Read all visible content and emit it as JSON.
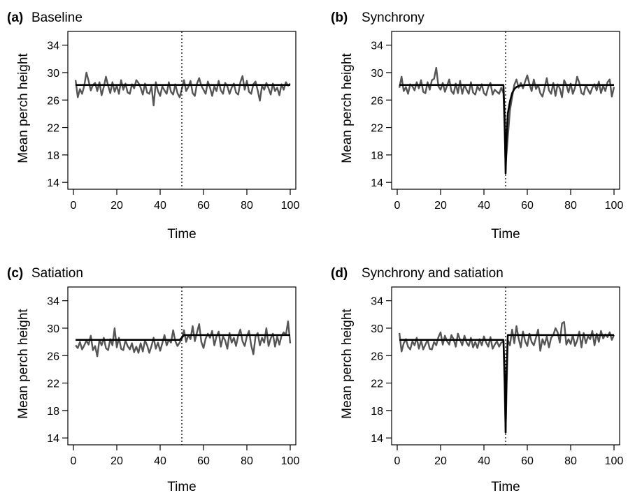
{
  "chart_data": [
    {
      "type": "line",
      "panel_letter": "(a)",
      "title": "Baseline",
      "xlabel": "Time",
      "ylabel": "Mean perch height",
      "xlim": [
        0,
        100
      ],
      "ylim": [
        13,
        36
      ],
      "xticks": [
        0,
        20,
        40,
        60,
        80,
        100
      ],
      "yticks": [
        14,
        18,
        22,
        26,
        30,
        34
      ],
      "vline": 50,
      "series": [
        {
          "role": "observed",
          "color": "#555555",
          "x": [
            1,
            2,
            3,
            4,
            5,
            6,
            7,
            8,
            9,
            10,
            11,
            12,
            13,
            14,
            15,
            16,
            17,
            18,
            19,
            20,
            21,
            22,
            23,
            24,
            25,
            26,
            27,
            28,
            29,
            30,
            31,
            32,
            33,
            34,
            35,
            36,
            37,
            38,
            39,
            40,
            41,
            42,
            43,
            44,
            45,
            46,
            47,
            48,
            49,
            50,
            51,
            52,
            53,
            54,
            55,
            56,
            57,
            58,
            59,
            60,
            61,
            62,
            63,
            64,
            65,
            66,
            67,
            68,
            69,
            70,
            71,
            72,
            73,
            74,
            75,
            76,
            77,
            78,
            79,
            80,
            81,
            82,
            83,
            84,
            85,
            86,
            87,
            88,
            89,
            90,
            91,
            92,
            93,
            94,
            95,
            96,
            97,
            98,
            99,
            100
          ],
          "y": [
            28.9,
            26.4,
            27.6,
            26.9,
            28.1,
            30.0,
            28.8,
            27.4,
            28.2,
            28.5,
            27.3,
            28.6,
            26.7,
            27.9,
            29.4,
            28.1,
            27.0,
            28.6,
            27.2,
            28.1,
            26.9,
            28.9,
            27.5,
            28.4,
            27.1,
            26.9,
            28.3,
            27.7,
            28.9,
            28.5,
            27.8,
            26.8,
            28.4,
            27.1,
            26.9,
            28.0,
            25.2,
            28.6,
            27.3,
            26.6,
            28.0,
            27.4,
            26.9,
            28.6,
            27.2,
            26.8,
            28.3,
            27.0,
            26.4,
            27.6,
            28.9,
            27.3,
            27.9,
            28.8,
            27.0,
            26.6,
            28.4,
            29.2,
            28.1,
            27.5,
            26.9,
            28.7,
            27.8,
            26.6,
            28.0,
            27.3,
            28.8,
            27.4,
            26.9,
            28.5,
            28.0,
            26.9,
            27.8,
            28.4,
            27.1,
            26.8,
            28.6,
            29.5,
            27.5,
            28.8,
            27.2,
            26.9,
            28.3,
            28.7,
            27.4,
            25.9,
            28.1,
            27.5,
            28.5,
            27.7,
            26.8,
            28.4,
            27.3,
            27.8,
            26.7,
            28.3,
            27.5,
            28.6,
            28.1,
            28.4
          ]
        },
        {
          "role": "fitted",
          "color": "#000000",
          "x": [
            1,
            100
          ],
          "y": [
            28.2,
            28.2
          ]
        }
      ]
    },
    {
      "type": "line",
      "panel_letter": "(b)",
      "title": "Synchrony",
      "xlabel": "Time",
      "ylabel": "Mean perch height",
      "xlim": [
        0,
        100
      ],
      "ylim": [
        13,
        36
      ],
      "xticks": [
        0,
        20,
        40,
        60,
        80,
        100
      ],
      "yticks": [
        14,
        18,
        22,
        26,
        30,
        34
      ],
      "vline": 50,
      "series": [
        {
          "role": "observed",
          "color": "#555555",
          "x": [
            1,
            2,
            3,
            4,
            5,
            6,
            7,
            8,
            9,
            10,
            11,
            12,
            13,
            14,
            15,
            16,
            17,
            18,
            19,
            20,
            21,
            22,
            23,
            24,
            25,
            26,
            27,
            28,
            29,
            30,
            31,
            32,
            33,
            34,
            35,
            36,
            37,
            38,
            39,
            40,
            41,
            42,
            43,
            44,
            45,
            46,
            47,
            48,
            49,
            50,
            51,
            52,
            53,
            54,
            55,
            56,
            57,
            58,
            59,
            60,
            61,
            62,
            63,
            64,
            65,
            66,
            67,
            68,
            69,
            70,
            71,
            72,
            73,
            74,
            75,
            76,
            77,
            78,
            79,
            80,
            81,
            82,
            83,
            84,
            85,
            86,
            87,
            88,
            89,
            90,
            91,
            92,
            93,
            94,
            95,
            96,
            97,
            98,
            99,
            100
          ],
          "y": [
            27.8,
            29.4,
            27.3,
            27.9,
            26.9,
            28.3,
            28.0,
            27.4,
            28.6,
            27.7,
            28.9,
            27.2,
            27.0,
            28.6,
            27.5,
            28.9,
            29.1,
            30.7,
            28.0,
            27.5,
            28.5,
            27.2,
            28.1,
            29.0,
            27.3,
            26.9,
            28.4,
            27.0,
            28.8,
            26.9,
            28.2,
            27.5,
            26.9,
            28.6,
            27.1,
            26.8,
            28.0,
            27.4,
            28.3,
            27.0,
            26.7,
            27.9,
            28.5,
            26.8,
            27.5,
            27.2,
            26.9,
            27.8,
            27.0,
            16.5,
            20.5,
            24.5,
            26.4,
            28.2,
            29.0,
            27.8,
            28.5,
            27.7,
            28.7,
            29.6,
            28.3,
            27.3,
            29.0,
            27.6,
            28.2,
            27.0,
            26.5,
            27.8,
            29.2,
            27.4,
            26.9,
            28.5,
            26.6,
            28.3,
            27.7,
            26.4,
            28.9,
            28.2,
            27.1,
            28.4,
            26.9,
            27.8,
            29.4,
            28.5,
            27.0,
            26.8,
            28.2,
            27.5,
            26.9,
            27.8,
            28.3,
            27.4,
            28.7,
            27.0,
            28.1,
            27.3,
            28.6,
            29.0,
            26.5,
            27.9
          ]
        },
        {
          "role": "fitted",
          "color": "#000000",
          "x": [
            1,
            49,
            49.6,
            50,
            50.5,
            51,
            52,
            53,
            54,
            55,
            56,
            57,
            58,
            60,
            100
          ],
          "y": [
            28.2,
            28.2,
            23.0,
            15.3,
            21.0,
            24.0,
            25.8,
            27.0,
            27.6,
            27.9,
            28.05,
            28.12,
            28.16,
            28.2,
            28.2
          ]
        }
      ]
    },
    {
      "type": "line",
      "panel_letter": "(c)",
      "title": "Satiation",
      "xlabel": "Time",
      "ylabel": "Mean perch height",
      "xlim": [
        0,
        100
      ],
      "ylim": [
        13,
        36
      ],
      "xticks": [
        0,
        20,
        40,
        60,
        80,
        100
      ],
      "yticks": [
        14,
        18,
        22,
        26,
        30,
        34
      ],
      "vline": 50,
      "series": [
        {
          "role": "observed",
          "color": "#555555",
          "x": [
            1,
            2,
            3,
            4,
            5,
            6,
            7,
            8,
            9,
            10,
            11,
            12,
            13,
            14,
            15,
            16,
            17,
            18,
            19,
            20,
            21,
            22,
            23,
            24,
            25,
            26,
            27,
            28,
            29,
            30,
            31,
            32,
            33,
            34,
            35,
            36,
            37,
            38,
            39,
            40,
            41,
            42,
            43,
            44,
            45,
            46,
            47,
            48,
            49,
            50,
            51,
            52,
            53,
            54,
            55,
            56,
            57,
            58,
            59,
            60,
            61,
            62,
            63,
            64,
            65,
            66,
            67,
            68,
            69,
            70,
            71,
            72,
            73,
            74,
            75,
            76,
            77,
            78,
            79,
            80,
            81,
            82,
            83,
            84,
            85,
            86,
            87,
            88,
            89,
            90,
            91,
            92,
            93,
            94,
            95,
            96,
            97,
            98,
            99,
            100
          ],
          "y": [
            27.5,
            27.1,
            28.0,
            26.9,
            27.5,
            28.2,
            27.6,
            28.9,
            26.8,
            27.4,
            25.9,
            28.3,
            27.5,
            28.6,
            27.1,
            26.8,
            28.4,
            27.5,
            30.0,
            27.2,
            28.6,
            27.0,
            26.8,
            28.2,
            27.4,
            26.9,
            27.8,
            26.5,
            27.3,
            26.4,
            27.8,
            26.6,
            28.2,
            27.5,
            26.4,
            27.4,
            28.6,
            27.0,
            27.9,
            26.7,
            27.8,
            29.0,
            27.5,
            28.3,
            27.9,
            29.7,
            28.1,
            27.4,
            27.9,
            28.5,
            29.7,
            28.0,
            29.0,
            28.4,
            30.3,
            28.1,
            29.4,
            30.6,
            28.0,
            27.1,
            28.5,
            29.2,
            28.6,
            29.6,
            27.5,
            28.8,
            29.5,
            27.3,
            28.8,
            28.2,
            27.0,
            29.3,
            27.9,
            28.6,
            27.4,
            28.9,
            29.8,
            28.1,
            27.4,
            28.8,
            29.6,
            27.5,
            26.2,
            28.8,
            29.3,
            27.5,
            28.6,
            27.9,
            30.0,
            27.4,
            28.5,
            29.2,
            27.3,
            28.8,
            27.6,
            28.9,
            29.4,
            29.0,
            31.0,
            27.8
          ]
        },
        {
          "role": "fitted",
          "color": "#000000",
          "x": [
            1,
            49,
            50,
            51,
            100
          ],
          "y": [
            28.3,
            28.3,
            28.6,
            29.0,
            29.0
          ]
        }
      ]
    },
    {
      "type": "line",
      "panel_letter": "(d)",
      "title": "Synchrony and satiation",
      "xlabel": "Time",
      "ylabel": "Mean perch height",
      "xlim": [
        0,
        100
      ],
      "ylim": [
        13,
        36
      ],
      "xticks": [
        0,
        20,
        40,
        60,
        80,
        100
      ],
      "yticks": [
        14,
        18,
        22,
        26,
        30,
        34
      ],
      "vline": 50,
      "series": [
        {
          "role": "observed",
          "color": "#555555",
          "x": [
            1,
            2,
            3,
            4,
            5,
            6,
            7,
            8,
            9,
            10,
            11,
            12,
            13,
            14,
            15,
            16,
            17,
            18,
            19,
            20,
            21,
            22,
            23,
            24,
            25,
            26,
            27,
            28,
            29,
            30,
            31,
            32,
            33,
            34,
            35,
            36,
            37,
            38,
            39,
            40,
            41,
            42,
            43,
            44,
            45,
            46,
            47,
            48,
            49,
            50,
            51,
            52,
            53,
            54,
            55,
            56,
            57,
            58,
            59,
            60,
            61,
            62,
            63,
            64,
            65,
            66,
            67,
            68,
            69,
            70,
            71,
            72,
            73,
            74,
            75,
            76,
            77,
            78,
            79,
            80,
            81,
            82,
            83,
            84,
            85,
            86,
            87,
            88,
            89,
            90,
            91,
            92,
            93,
            94,
            95,
            96,
            97,
            98,
            99,
            100
          ],
          "y": [
            29.3,
            26.6,
            27.8,
            28.4,
            27.3,
            26.9,
            28.1,
            27.5,
            28.6,
            27.0,
            28.2,
            26.9,
            27.6,
            28.3,
            27.0,
            26.9,
            28.0,
            27.5,
            28.7,
            29.4,
            27.6,
            28.9,
            28.1,
            27.6,
            29.0,
            28.4,
            27.3,
            29.2,
            28.3,
            27.5,
            28.9,
            27.9,
            27.4,
            28.6,
            27.2,
            28.0,
            27.1,
            28.4,
            27.5,
            28.8,
            27.9,
            27.3,
            28.7,
            27.0,
            27.6,
            28.1,
            27.3,
            27.9,
            28.1,
            14.8,
            28.3,
            27.5,
            29.8,
            27.8,
            30.3,
            28.5,
            27.2,
            29.5,
            28.1,
            27.4,
            29.2,
            28.0,
            27.5,
            28.6,
            29.8,
            26.7,
            28.4,
            27.6,
            28.8,
            27.2,
            28.6,
            29.0,
            30.0,
            29.4,
            27.9,
            30.7,
            30.9,
            27.6,
            28.4,
            27.7,
            29.0,
            27.4,
            28.2,
            29.5,
            27.2,
            29.3,
            27.8,
            28.8,
            28.4,
            29.6,
            27.5,
            29.2,
            28.0,
            29.6,
            28.5,
            29.1,
            28.7,
            29.4,
            28.3,
            29.0
          ]
        },
        {
          "role": "fitted",
          "color": "#000000",
          "x": [
            1,
            49,
            49.7,
            50,
            50.3,
            51,
            100
          ],
          "y": [
            28.3,
            28.3,
            22.0,
            14.8,
            22.0,
            29.0,
            29.0
          ]
        }
      ]
    }
  ]
}
